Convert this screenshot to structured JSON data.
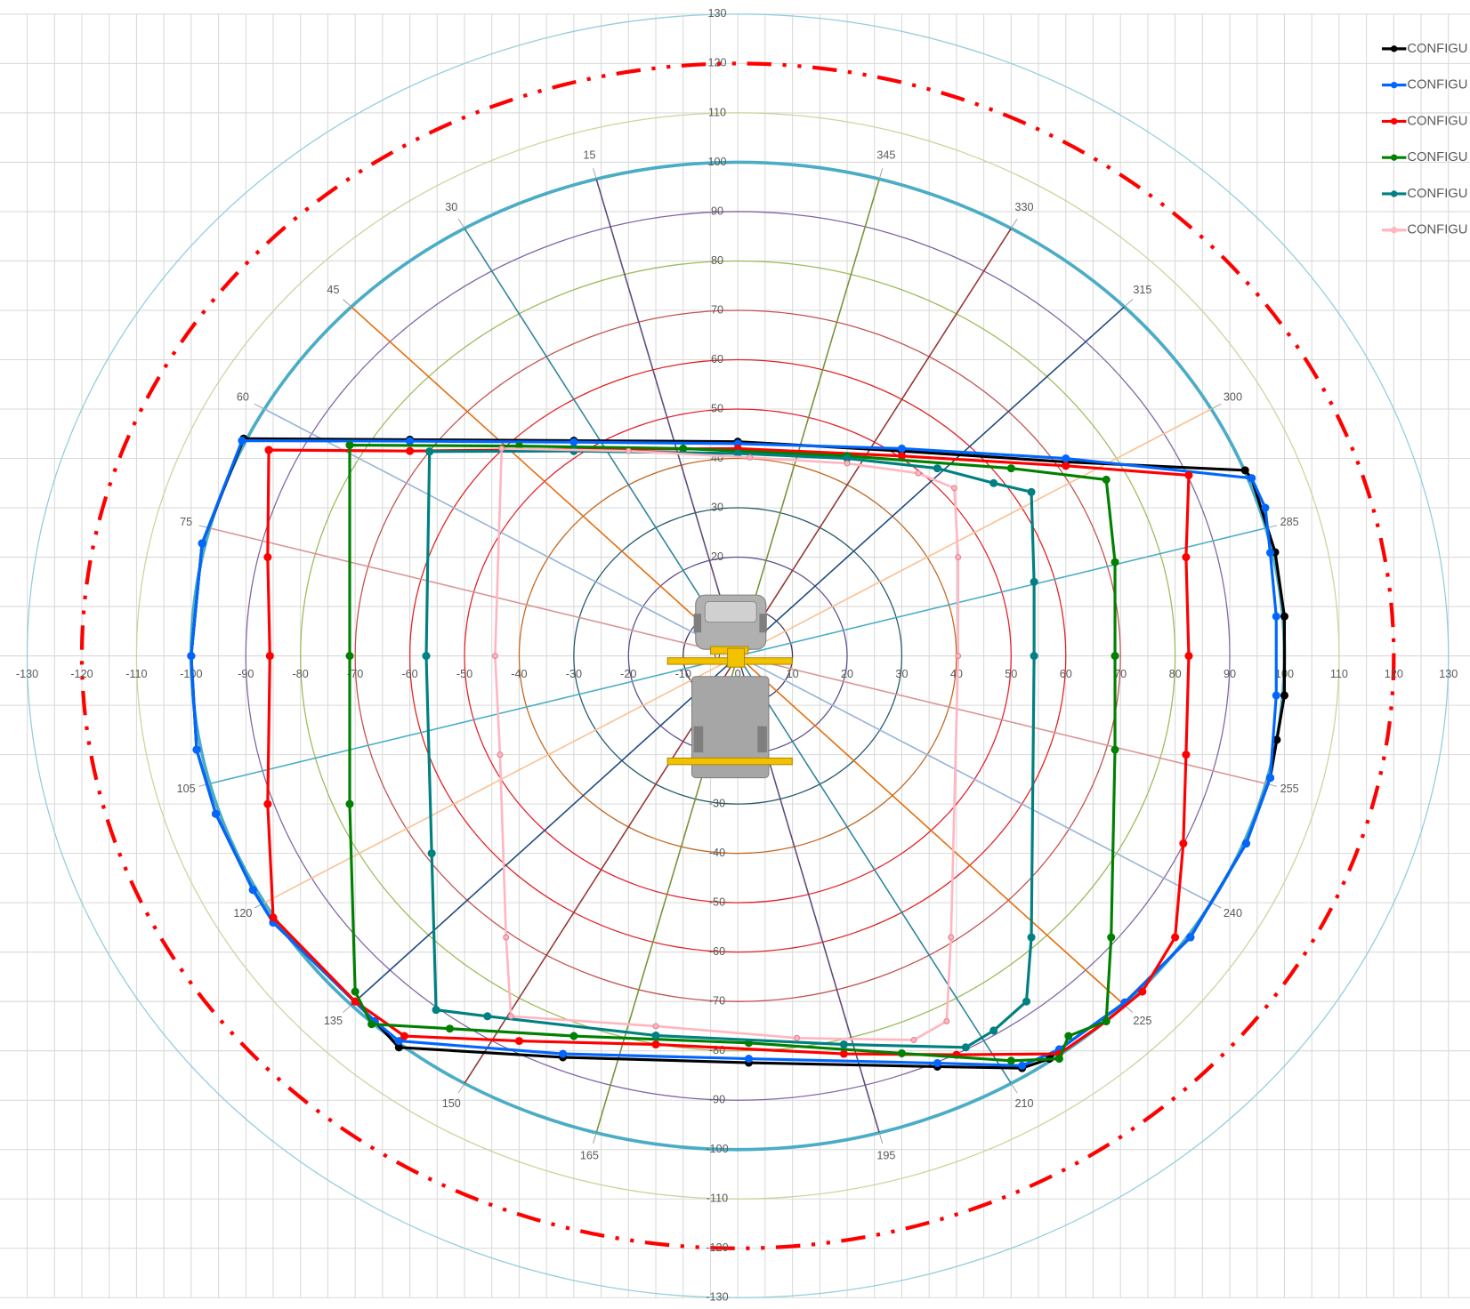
{
  "chart_data": {
    "type": "scatter",
    "xlim": [
      -130,
      130
    ],
    "ylim": [
      -130,
      130
    ],
    "xticks": [
      -130,
      -120,
      -110,
      -100,
      -90,
      -80,
      -70,
      -60,
      -50,
      -40,
      -30,
      -20,
      -10,
      0,
      10,
      20,
      30,
      40,
      50,
      60,
      70,
      80,
      90,
      100,
      110,
      120,
      130
    ],
    "yticks": [
      -130,
      -120,
      -110,
      -100,
      -90,
      -80,
      -70,
      -60,
      -50,
      -40,
      -30,
      -20,
      -10,
      0,
      10,
      20,
      30,
      40,
      50,
      60,
      70,
      80,
      90,
      100,
      110,
      120,
      130
    ],
    "grid": true,
    "legend": "top-right",
    "rings": [
      {
        "radius": 10,
        "color": "#403152",
        "width": 1.2
      },
      {
        "radius": 20,
        "color": "#5f4b8b",
        "width": 1.2
      },
      {
        "radius": 30,
        "color": "#215968",
        "width": 1.2
      },
      {
        "radius": 40,
        "color": "#c0661f",
        "width": 1.2
      },
      {
        "radius": 50,
        "color": "#e0202a",
        "width": 1.2
      },
      {
        "radius": 60,
        "color": "#e02020",
        "width": 1.2
      },
      {
        "radius": 70,
        "color": "#c0504d",
        "width": 1.2
      },
      {
        "radius": 80,
        "color": "#9bbb59",
        "width": 1.2
      },
      {
        "radius": 90,
        "color": "#8064a2",
        "width": 1.2
      },
      {
        "radius": 100,
        "color": "#4bacc6",
        "width": 3.5
      },
      {
        "radius": 110,
        "color": "#c4d79b",
        "width": 1.2
      },
      {
        "radius": 120,
        "color": "#ff0000",
        "width": 4,
        "dash": "dash-dot-dot"
      },
      {
        "radius": 130,
        "color": "#92cddc",
        "width": 1.2
      }
    ],
    "spoke_length": 100,
    "spokes": [
      {
        "angle": 15,
        "color": "#604a7b"
      },
      {
        "angle": 30,
        "color": "#31859c"
      },
      {
        "angle": 45,
        "color": "#e46c0a"
      },
      {
        "angle": 60,
        "color": "#95b3d7"
      },
      {
        "angle": 75,
        "color": "#d99694"
      },
      {
        "angle": 105,
        "color": "#4bacc6"
      },
      {
        "angle": 120,
        "color": "#fac090"
      },
      {
        "angle": 135,
        "color": "#1f497d"
      },
      {
        "angle": 150,
        "color": "#953735"
      },
      {
        "angle": 165,
        "color": "#77933c"
      },
      {
        "angle": 195,
        "color": "#604a7b"
      },
      {
        "angle": 210,
        "color": "#31859c"
      },
      {
        "angle": 225,
        "color": "#e46c0a"
      },
      {
        "angle": 240,
        "color": "#95b3d7"
      },
      {
        "angle": 255,
        "color": "#d99694"
      },
      {
        "angle": 285,
        "color": "#4bacc6"
      },
      {
        "angle": 300,
        "color": "#fac090"
      },
      {
        "angle": 315,
        "color": "#1f497d"
      },
      {
        "angle": 330,
        "color": "#953735"
      },
      {
        "angle": 345,
        "color": "#77933c"
      }
    ],
    "series": [
      {
        "name": "CONFIGU",
        "color": "#000000",
        "x": [
          -90.4,
          -60,
          -30,
          0,
          30,
          60,
          92.8,
          94,
          98.3,
          100,
          100,
          98.6,
          97.4,
          93,
          82.8,
          70.8,
          58.8,
          57,
          52,
          36.5,
          2,
          -32,
          -62,
          -66.4,
          -85,
          -88.7,
          -95.5,
          -99,
          -100,
          -98,
          -90.4
        ],
        "values": [
          44,
          43.8,
          43.6,
          43.4,
          41.5,
          39.3,
          37.6,
          36,
          21,
          8,
          -8,
          -17,
          -24.7,
          -38,
          -57,
          -70.2,
          -79.7,
          -81.6,
          -83.5,
          -83.2,
          -82.4,
          -81.3,
          -79.3,
          -74,
          -54,
          -47.4,
          -32,
          -19,
          0,
          22.8,
          44
        ]
      },
      {
        "name": "CONFIGU",
        "color": "#0066ff",
        "x": [
          -90.7,
          -60,
          -30,
          0,
          30,
          60,
          94,
          96.5,
          97.4,
          98.5,
          98.5,
          97.4,
          93,
          82.8,
          70.8,
          58.8,
          52,
          36.5,
          2,
          -32,
          -62,
          -66.4,
          -85,
          -88.7,
          -95.5,
          -99,
          -100,
          -98,
          -90.7
        ],
        "values": [
          43.6,
          43.5,
          43.3,
          43,
          42,
          40,
          36,
          30,
          20.9,
          8,
          -8,
          -24.7,
          -38,
          -57,
          -70.2,
          -79.7,
          -83,
          -82.5,
          -81.6,
          -80.6,
          -78,
          -74,
          -54,
          -47.4,
          -32,
          -19,
          0,
          22.8,
          43.6
        ]
      },
      {
        "name": "CONFIGU",
        "color": "#ff0000",
        "x": [
          -85.8,
          -60,
          -30,
          0,
          30,
          60,
          82.5,
          82,
          82.5,
          82,
          81.5,
          80,
          74,
          67.4,
          58.8,
          40,
          19.4,
          -15,
          -40,
          -61,
          -70,
          -85,
          -86,
          -85.6,
          -86,
          -85.8
        ],
        "values": [
          41.7,
          41.5,
          41.8,
          42,
          40.5,
          38.5,
          36.6,
          20,
          0,
          -20,
          -38,
          -57,
          -68,
          -74,
          -80.6,
          -80.8,
          -80.6,
          -78.7,
          -78,
          -77,
          -70,
          -53,
          -30,
          0,
          20,
          41.7
        ]
      },
      {
        "name": "CONFIGU",
        "color": "#008000",
        "x": [
          -71,
          -40,
          -10,
          20,
          50,
          67.4,
          69,
          69,
          69,
          68.3,
          67.4,
          60.5,
          58.8,
          50,
          30,
          2,
          -30,
          -52.7,
          -67,
          -70,
          -71,
          -71,
          -71
        ],
        "values": [
          42.7,
          42.5,
          42,
          40.5,
          38,
          35.7,
          19,
          0,
          -19,
          -57,
          -74,
          -77,
          -81.6,
          -82,
          -80.5,
          -78.4,
          -77,
          -75.5,
          -74.6,
          -68,
          -30,
          0,
          42.7
        ]
      },
      {
        "name": "CONFIGU",
        "color": "#008080",
        "x": [
          -56.4,
          -30,
          0,
          20,
          36.5,
          46.8,
          53.7,
          54.2,
          54.2,
          53.7,
          52.8,
          46.8,
          41.7,
          19.4,
          -15,
          -45.8,
          -55.2,
          -56,
          -57,
          -56.4
        ],
        "values": [
          41.4,
          41.5,
          41,
          40,
          38,
          35,
          33.2,
          15,
          0,
          -57,
          -70,
          -75.9,
          -79.3,
          -78.7,
          -76.9,
          -73,
          -71.7,
          -40,
          0,
          41.4
        ]
      },
      {
        "name": "CONFIGU",
        "color": "#ffb6c1",
        "x": [
          -43.2,
          -20,
          2.2,
          20,
          33,
          39.6,
          40.3,
          40.3,
          39,
          38.2,
          32.2,
          10.8,
          -15,
          -41.5,
          -42.4,
          -43.5,
          -44.4,
          -43.2
        ],
        "values": [
          42,
          41.5,
          40.2,
          39,
          37,
          34,
          20,
          0,
          -57,
          -74,
          -77.8,
          -77.4,
          -75,
          -73,
          -57,
          -20,
          0,
          42
        ]
      }
    ]
  }
}
